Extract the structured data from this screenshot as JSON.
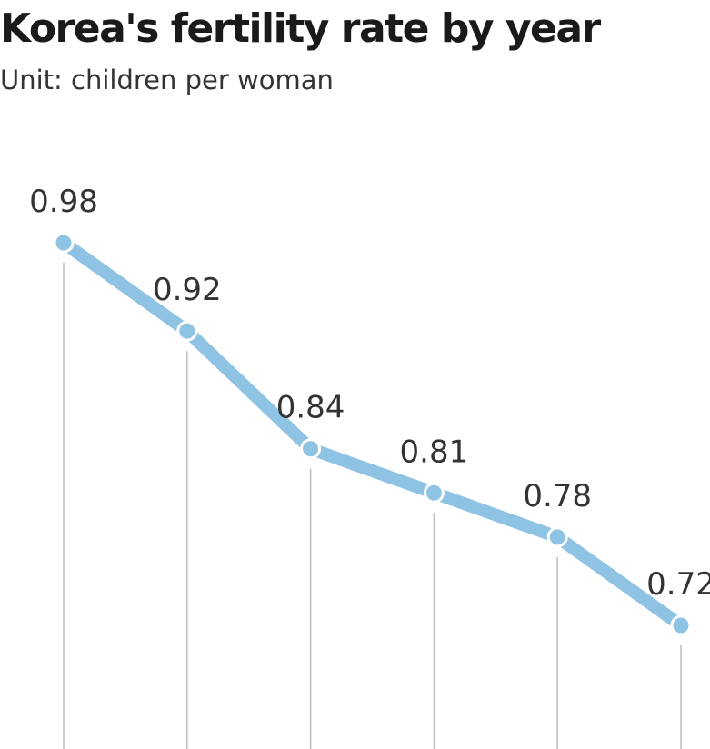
{
  "chart_data": {
    "type": "line",
    "title": "Korea's fertility rate by year",
    "subtitle": "Unit: children per woman",
    "categories": [
      null,
      null,
      null,
      null,
      null,
      null
    ],
    "series": [
      {
        "name": null,
        "color": "#8fc3e4",
        "values": [
          0.98,
          0.92,
          0.84,
          0.81,
          0.78,
          0.72
        ]
      }
    ]
  }
}
